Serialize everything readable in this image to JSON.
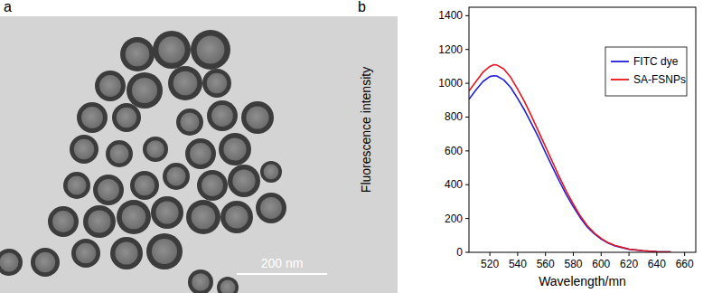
{
  "panels": [
    {
      "label": "a",
      "scale_bar": "200 nm"
    },
    {
      "label": "b"
    }
  ],
  "chart_data": {
    "type": "line",
    "x_label": "Wavelength/mn",
    "y_label": "Fluorescence intensity",
    "x": [
      505,
      510,
      515,
      520,
      523,
      525,
      530,
      535,
      540,
      545,
      550,
      555,
      560,
      565,
      570,
      575,
      580,
      585,
      590,
      595,
      600,
      605,
      610,
      620,
      630,
      640,
      650
    ],
    "series": [
      {
        "name": "FITC dye",
        "color": "#1f1fd6",
        "values": [
          905,
          960,
          1010,
          1040,
          1045,
          1043,
          1020,
          975,
          910,
          840,
          760,
          680,
          590,
          505,
          420,
          340,
          270,
          205,
          150,
          110,
          78,
          55,
          38,
          18,
          9,
          4,
          2
        ]
      },
      {
        "name": "SA-FSNPs",
        "color": "#e8141e",
        "values": [
          955,
          1010,
          1065,
          1100,
          1110,
          1108,
          1085,
          1035,
          965,
          890,
          805,
          715,
          625,
          535,
          445,
          360,
          285,
          215,
          158,
          115,
          82,
          57,
          40,
          19,
          9,
          4,
          2
        ]
      }
    ],
    "xlim": [
      505,
      668
    ],
    "ylim": [
      0,
      1450
    ],
    "xticks": [
      520,
      540,
      560,
      580,
      600,
      620,
      640,
      660
    ],
    "yticks": [
      0,
      200,
      400,
      600,
      800,
      1000,
      1200,
      1400
    ],
    "legend": "upper right",
    "grid": false
  }
}
